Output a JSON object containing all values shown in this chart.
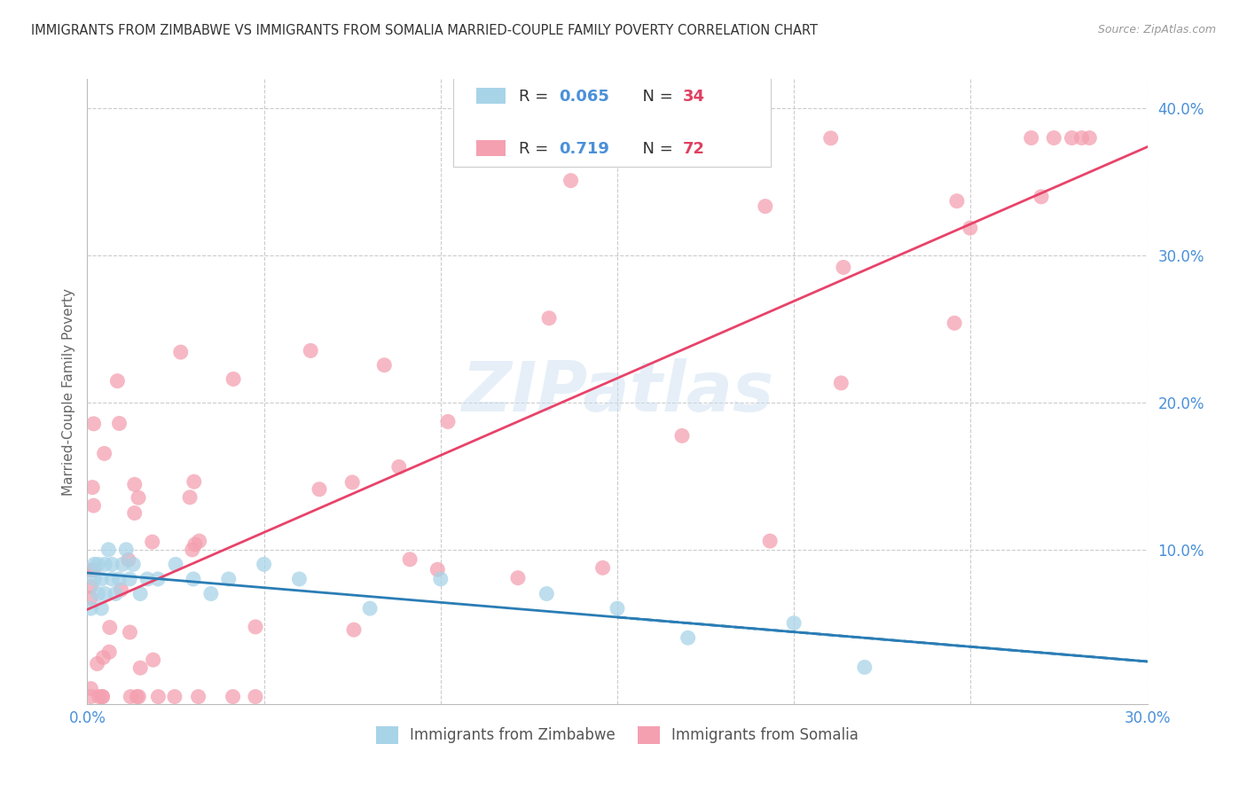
{
  "title": "IMMIGRANTS FROM ZIMBABWE VS IMMIGRANTS FROM SOMALIA MARRIED-COUPLE FAMILY POVERTY CORRELATION CHART",
  "source": "Source: ZipAtlas.com",
  "ylabel_left": "Married-Couple Family Poverty",
  "legend_label1": "Immigrants from Zimbabwe",
  "legend_label2": "Immigrants from Somalia",
  "R_zimbabwe": 0.065,
  "N_zimbabwe": 34,
  "R_somalia": 0.719,
  "N_somalia": 72,
  "xlim": [
    0.0,
    0.3
  ],
  "ylim": [
    -0.005,
    0.42
  ],
  "color_zimbabwe": "#a8d4e8",
  "color_somalia": "#f4a0b0",
  "color_trendline_zimbabwe": "#2a7db5",
  "color_trendline_somalia": "#e8436a",
  "color_text_blue": "#4a90d9",
  "color_title": "#333333",
  "watermark_text": "ZIPatlas",
  "background_color": "#ffffff",
  "grid_color": "#cccccc"
}
